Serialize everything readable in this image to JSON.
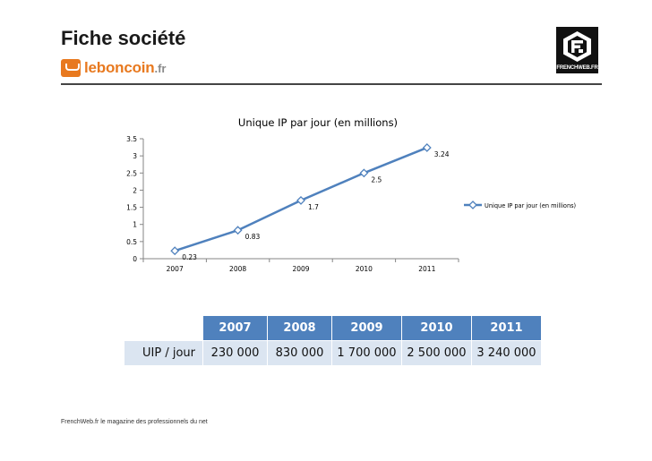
{
  "header": {
    "title": "Fiche société",
    "brand_name": "leboncoin",
    "brand_ext": ".fr",
    "publisher_logo_text": "FRENCHWEB.FR"
  },
  "chart_data": {
    "type": "line",
    "title": "Unique IP par jour (en millions)",
    "xlabel": "",
    "ylabel": "",
    "categories": [
      "2007",
      "2008",
      "2009",
      "2010",
      "2011"
    ],
    "series": [
      {
        "name": "Unique IP par jour (en millions)",
        "values": [
          0.23,
          0.83,
          1.7,
          2.5,
          3.24
        ],
        "labels": [
          "0.23",
          "0.83",
          "1.7",
          "2.5",
          "3.24"
        ]
      }
    ],
    "ylim": [
      0,
      3.5
    ],
    "yticks": [
      0,
      0.5,
      1,
      1.5,
      2,
      2.5,
      3,
      3.5
    ],
    "ytick_labels": [
      "0",
      "0.5",
      "1",
      "1.5",
      "2",
      "2.5",
      "3",
      "3.5"
    ],
    "grid": false,
    "legend_position": "right",
    "color": "#4f81bd"
  },
  "table": {
    "headers": [
      "2007",
      "2008",
      "2009",
      "2010",
      "2011"
    ],
    "row_label": "UIP / jour",
    "values": [
      "230 000",
      "830 000",
      "1 700 000",
      "2 500 000",
      "3 240 000"
    ]
  },
  "footer": {
    "text": "FrenchWeb.fr le magazine des professionnels du net"
  }
}
